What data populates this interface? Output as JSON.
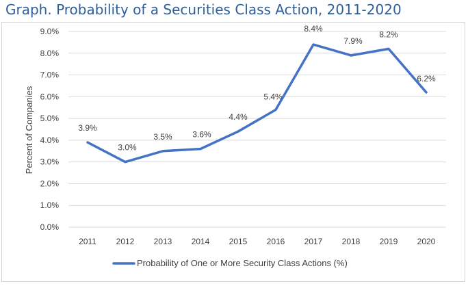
{
  "title": "Graph. Probability of a Securities Class Action, 2011-2020",
  "chart_data": {
    "type": "line",
    "categories": [
      "2011",
      "2012",
      "2013",
      "2014",
      "2015",
      "2016",
      "2017",
      "2018",
      "2019",
      "2020"
    ],
    "series": [
      {
        "name": "Probability of One or More Security Class Actions (%)",
        "values": [
          3.9,
          3.0,
          3.5,
          3.6,
          4.4,
          5.4,
          8.4,
          7.9,
          8.2,
          6.2
        ],
        "labels": [
          "3.9%",
          "3.0%",
          "3.5%",
          "3.6%",
          "4.4%",
          "5.4%",
          "8.4%",
          "7.9%",
          "8.2%",
          "6.2%"
        ]
      }
    ],
    "ylabel": "Percent of Companies",
    "xlabel": "",
    "ylim": [
      0,
      9
    ],
    "yticks": [
      "0.0%",
      "1.0%",
      "2.0%",
      "3.0%",
      "4.0%",
      "5.0%",
      "6.0%",
      "7.0%",
      "8.0%",
      "9.0%"
    ],
    "grid": true,
    "legend_position": "bottom",
    "line_color": "#4472c4"
  }
}
